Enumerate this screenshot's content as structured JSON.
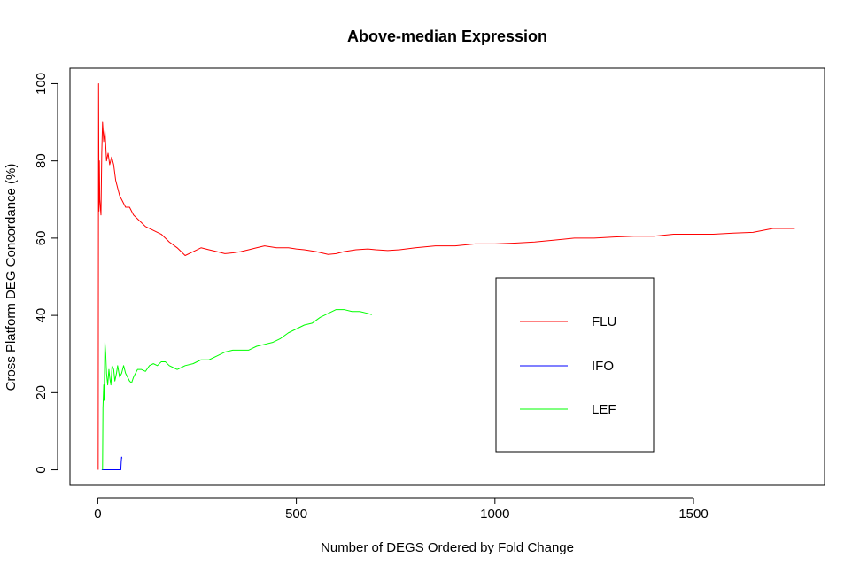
{
  "chart_data": {
    "type": "line",
    "title": "Above-median Expression",
    "xlabel": "Number of DEGS Ordered by Fold Change",
    "ylabel": "Cross Platform DEG Concordance (%)",
    "xlim": [
      -70,
      1830
    ],
    "ylim": [
      -4,
      104
    ],
    "x_ticks": [
      0,
      500,
      1000,
      1500
    ],
    "x_tick_labels": [
      "0",
      "500",
      "1000",
      "1500"
    ],
    "y_ticks": [
      0,
      20,
      40,
      60,
      80,
      100
    ],
    "y_tick_labels": [
      "0",
      "20",
      "40",
      "60",
      "80",
      "100"
    ],
    "grid": false,
    "legend_position": "right",
    "series": [
      {
        "name": "FLU",
        "color": "#ff0000",
        "points": [
          [
            1,
            0
          ],
          [
            2,
            100
          ],
          [
            3,
            67
          ],
          [
            4,
            80
          ],
          [
            5,
            70
          ],
          [
            8,
            66
          ],
          [
            10,
            82
          ],
          [
            12,
            90
          ],
          [
            15,
            85
          ],
          [
            18,
            88
          ],
          [
            22,
            80
          ],
          [
            26,
            82
          ],
          [
            30,
            79
          ],
          [
            35,
            81
          ],
          [
            40,
            79
          ],
          [
            45,
            75
          ],
          [
            50,
            73
          ],
          [
            55,
            71
          ],
          [
            60,
            70
          ],
          [
            70,
            68
          ],
          [
            80,
            68
          ],
          [
            90,
            66
          ],
          [
            100,
            65
          ],
          [
            120,
            63
          ],
          [
            140,
            62
          ],
          [
            160,
            61
          ],
          [
            180,
            59
          ],
          [
            200,
            57.5
          ],
          [
            220,
            55.5
          ],
          [
            240,
            56.5
          ],
          [
            260,
            57.5
          ],
          [
            280,
            57
          ],
          [
            300,
            56.5
          ],
          [
            320,
            56
          ],
          [
            340,
            56.2
          ],
          [
            360,
            56.5
          ],
          [
            380,
            57
          ],
          [
            400,
            57.5
          ],
          [
            420,
            58
          ],
          [
            450,
            57.5
          ],
          [
            480,
            57.5
          ],
          [
            500,
            57.2
          ],
          [
            520,
            57
          ],
          [
            550,
            56.5
          ],
          [
            580,
            55.8
          ],
          [
            600,
            56
          ],
          [
            620,
            56.5
          ],
          [
            650,
            57
          ],
          [
            680,
            57.2
          ],
          [
            700,
            57
          ],
          [
            730,
            56.8
          ],
          [
            760,
            57
          ],
          [
            800,
            57.5
          ],
          [
            850,
            58
          ],
          [
            900,
            58
          ],
          [
            950,
            58.5
          ],
          [
            1000,
            58.5
          ],
          [
            1050,
            58.7
          ],
          [
            1100,
            59
          ],
          [
            1150,
            59.5
          ],
          [
            1200,
            60
          ],
          [
            1250,
            60
          ],
          [
            1300,
            60.3
          ],
          [
            1350,
            60.5
          ],
          [
            1400,
            60.5
          ],
          [
            1450,
            61
          ],
          [
            1500,
            61
          ],
          [
            1550,
            61
          ],
          [
            1600,
            61.3
          ],
          [
            1650,
            61.5
          ],
          [
            1700,
            62.5
          ],
          [
            1730,
            62.5
          ],
          [
            1755,
            62.5
          ]
        ]
      },
      {
        "name": "IFO",
        "color": "#0000ff",
        "points": [
          [
            10,
            0
          ],
          [
            20,
            0
          ],
          [
            30,
            0
          ],
          [
            40,
            0
          ],
          [
            50,
            0
          ],
          [
            58,
            0
          ],
          [
            59,
            2
          ],
          [
            60,
            3.3
          ],
          [
            61,
            3
          ]
        ]
      },
      {
        "name": "LEF",
        "color": "#00ff00",
        "points": [
          [
            12,
            0
          ],
          [
            13,
            16
          ],
          [
            15,
            22
          ],
          [
            16,
            18
          ],
          [
            18,
            33
          ],
          [
            20,
            30
          ],
          [
            22,
            25
          ],
          [
            25,
            22
          ],
          [
            28,
            26
          ],
          [
            30,
            24
          ],
          [
            33,
            22
          ],
          [
            36,
            27
          ],
          [
            40,
            26
          ],
          [
            43,
            23
          ],
          [
            47,
            25
          ],
          [
            50,
            27
          ],
          [
            55,
            24
          ],
          [
            60,
            25
          ],
          [
            65,
            27
          ],
          [
            70,
            25
          ],
          [
            75,
            24
          ],
          [
            80,
            23
          ],
          [
            85,
            22.5
          ],
          [
            90,
            24
          ],
          [
            95,
            25
          ],
          [
            100,
            26
          ],
          [
            110,
            26
          ],
          [
            120,
            25.5
          ],
          [
            130,
            27
          ],
          [
            140,
            27.5
          ],
          [
            150,
            27
          ],
          [
            160,
            28
          ],
          [
            170,
            28
          ],
          [
            180,
            27
          ],
          [
            190,
            26.5
          ],
          [
            200,
            26
          ],
          [
            210,
            26.5
          ],
          [
            220,
            27
          ],
          [
            240,
            27.5
          ],
          [
            260,
            28.5
          ],
          [
            280,
            28.5
          ],
          [
            300,
            29.5
          ],
          [
            320,
            30.5
          ],
          [
            340,
            31
          ],
          [
            360,
            31
          ],
          [
            380,
            31
          ],
          [
            400,
            32
          ],
          [
            420,
            32.5
          ],
          [
            440,
            33
          ],
          [
            460,
            34
          ],
          [
            480,
            35.5
          ],
          [
            500,
            36.5
          ],
          [
            520,
            37.5
          ],
          [
            540,
            38
          ],
          [
            560,
            39.5
          ],
          [
            580,
            40.5
          ],
          [
            600,
            41.5
          ],
          [
            620,
            41.5
          ],
          [
            640,
            41
          ],
          [
            660,
            41
          ],
          [
            680,
            40.5
          ],
          [
            690,
            40.2
          ]
        ]
      }
    ]
  }
}
